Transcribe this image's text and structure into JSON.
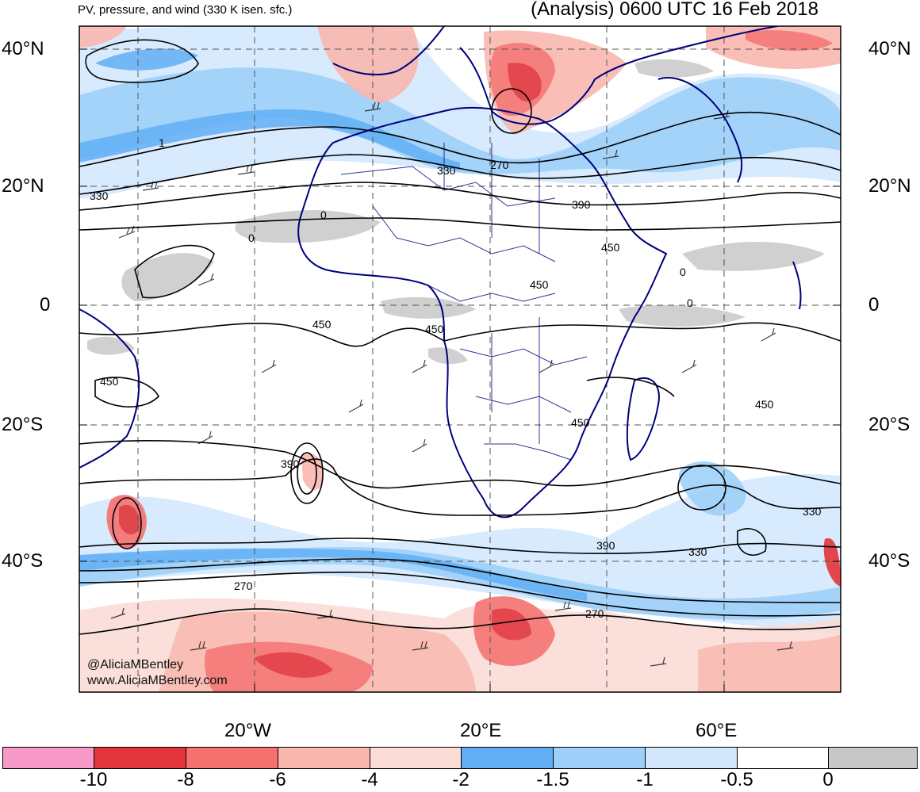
{
  "header": {
    "subtitle": "PV, pressure, and wind (330 K isen. sfc.)",
    "title": "(Analysis) 0600 UTC 16 Feb 2018"
  },
  "lat_labels_left": [
    "40°N",
    "20°N",
    "0",
    "20°S",
    "40°S"
  ],
  "lat_labels_right": [
    "40°N",
    "20°N",
    "0",
    "20°S",
    "40°S"
  ],
  "lon_labels": [
    "20°W",
    "20°E",
    "60°E"
  ],
  "credit": {
    "handle": "@AliciaMBentley",
    "url": "www.AliciaMBentley.com"
  },
  "contour_labels": [
    "1",
    "330",
    "0",
    "0",
    "330",
    "270",
    "390",
    "450",
    "450",
    "0",
    "0",
    "450",
    "450",
    "450",
    "450",
    "450",
    "390",
    "330",
    "330",
    "390",
    "270",
    "270"
  ],
  "colorbar": {
    "colors": [
      "#f79ac8",
      "#e2353b",
      "#f5726f",
      "#f9b7ae",
      "#fbdcd6",
      "#62aef5",
      "#9fd0fa",
      "#d4e8fd",
      "#ffffff",
      "#c8c8c8"
    ],
    "labels": [
      "-10",
      "-8",
      "-6",
      "-4",
      "-2",
      "-1.5",
      "-1",
      "-0.5",
      "0"
    ]
  },
  "colors": {
    "coast": "#00007f",
    "contour": "#000000",
    "grid": "#555555",
    "nodata": "#c8c8c8"
  }
}
